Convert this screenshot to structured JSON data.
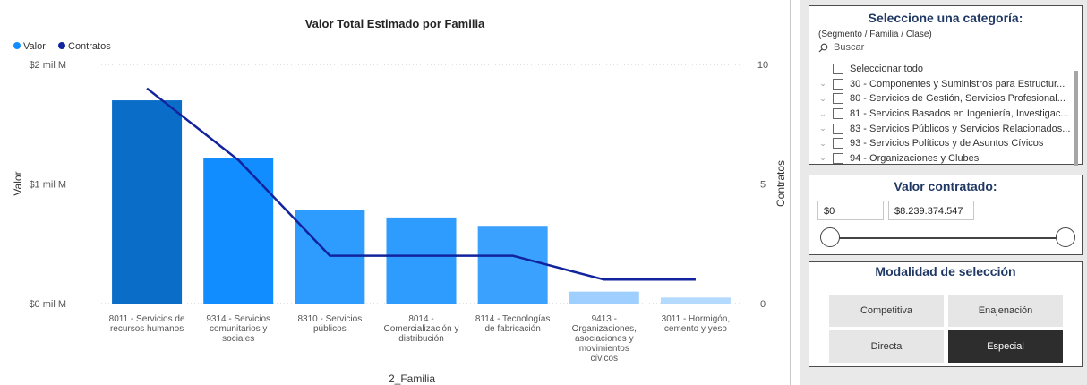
{
  "chart": {
    "title": "Valor Total Estimado por Familia",
    "legend": [
      {
        "label": "Valor",
        "color": "#118DFF"
      },
      {
        "label": "Contratos",
        "color": "#12239E"
      }
    ],
    "y_left_label": "Valor",
    "y_right_label": "Contratos",
    "x_label": "2_Familia"
  },
  "chart_data": {
    "type": "bar",
    "title": "Valor Total Estimado por Familia",
    "xlabel": "2_Familia",
    "ylabel": "Valor",
    "y2label": "Contratos",
    "categories": [
      [
        "8011 - Servicios de",
        "recursos humanos"
      ],
      [
        "9314 - Servicios",
        "comunitarios y",
        "sociales"
      ],
      [
        "8310 - Servicios",
        "públicos"
      ],
      [
        "8014 -",
        "Comercialización y",
        "distribución"
      ],
      [
        "8114 - Tecnologías",
        "de fabricación"
      ],
      [
        "9413 -",
        "Organizaciones,",
        "asociaciones y",
        "movimientos",
        "cívicos"
      ],
      [
        "3011 - Hormigón,",
        "cemento y yeso"
      ]
    ],
    "y_ticks": [
      "$0 mil M",
      "$1 mil M",
      "$2 mil M"
    ],
    "y2_ticks": [
      "0",
      "5",
      "10"
    ],
    "ylim": [
      0,
      2
    ],
    "y2lim": [
      0,
      10
    ],
    "legend_position": "top-left",
    "series": [
      {
        "name": "Valor",
        "type": "bar",
        "unit": "mil M",
        "values": [
          1.7,
          1.22,
          0.78,
          0.72,
          0.65,
          0.1,
          0.05
        ],
        "colors": [
          "#0A6EC8",
          "#118DFF",
          "#2E9BFF",
          "#2E9BFF",
          "#3AA1FF",
          "#9FCFFF",
          "#B5DAFF"
        ]
      },
      {
        "name": "Contratos",
        "type": "line",
        "color": "#12239E",
        "values": [
          9,
          6,
          2,
          2,
          2,
          1,
          1
        ]
      }
    ]
  },
  "category_slicer": {
    "title": "Seleccione una categoría:",
    "subtitle": "(Segmento / Familia / Clase)",
    "search_placeholder": "Buscar",
    "items": [
      {
        "label": "Seleccionar todo",
        "expandable": false
      },
      {
        "label": "30 - Componentes y Suministros para Estructur...",
        "expandable": true
      },
      {
        "label": "80 - Servicios de Gestión, Servicios Profesional...",
        "expandable": true
      },
      {
        "label": "81 - Servicios Basados en Ingeniería, Investigac...",
        "expandable": true
      },
      {
        "label": "83 - Servicios Públicos y Servicios Relacionados...",
        "expandable": true
      },
      {
        "label": "93 - Servicios Políticos y de Asuntos Cívicos",
        "expandable": true
      },
      {
        "label": "94 - Organizaciones y Clubes",
        "expandable": true
      }
    ]
  },
  "valor_slicer": {
    "title": "Valor contratado:",
    "min": "$0",
    "max": "$8.239.374.547"
  },
  "modalidad_slicer": {
    "title": "Modalidad de selección",
    "options": {
      "competitiva": "Competitiva",
      "enajenacion": "Enajenación",
      "directa": "Directa",
      "especial": "Especial"
    },
    "selected": "Especial"
  }
}
